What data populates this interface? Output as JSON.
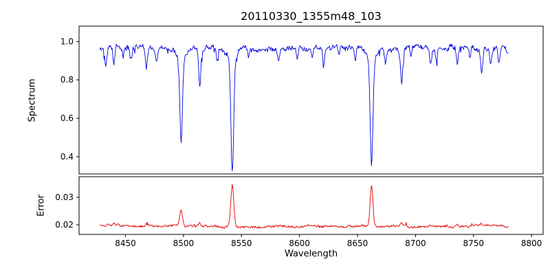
{
  "figure": {
    "title": "20110330_1355m48_103",
    "xlabel": "Wavelength",
    "ylabel_top": "Spectrum",
    "ylabel_bottom": "Error"
  },
  "xticks": [
    8450,
    8500,
    8550,
    8600,
    8650,
    8700,
    8750,
    8800
  ],
  "xtick_labels": [
    "8450",
    "8500",
    "8550",
    "8600",
    "8650",
    "8700",
    "8750",
    "8800"
  ],
  "chart_data": [
    {
      "type": "line",
      "name": "spectrum",
      "title": "20110330_1355m48_103",
      "xlabel": "Wavelength",
      "ylabel": "Spectrum",
      "legend": "none",
      "grid": false,
      "color": "#0000e0",
      "xlim": [
        8410,
        8810
      ],
      "ylim": [
        0.31,
        1.08
      ],
      "yticks": [
        0.4,
        0.6,
        0.8,
        1.0
      ],
      "ytick_labels": [
        "0.4",
        "0.6",
        "0.8",
        "1.0"
      ],
      "x_start": 8428,
      "x_end": 8780,
      "x_step": 0.5,
      "continuum": 0.965,
      "noise_amp": 0.011,
      "absorption_lines": [
        [
          8424,
          0.09,
          0.8,
          0
        ],
        [
          8433,
          0.1,
          0.9,
          0
        ],
        [
          8440,
          0.09,
          0.8,
          0
        ],
        [
          8448,
          0.05,
          0.7,
          0
        ],
        [
          8455,
          0.06,
          0.7,
          0
        ],
        [
          8468,
          0.11,
          0.9,
          0
        ],
        [
          8477,
          0.07,
          0.8,
          0
        ],
        [
          8498.0,
          0.43,
          1.1,
          0.055
        ],
        [
          8514,
          0.2,
          0.9,
          0
        ],
        [
          8529,
          0.07,
          0.8,
          0
        ],
        [
          8542.1,
          0.58,
          1.2,
          0.06
        ],
        [
          8556,
          0.05,
          0.7,
          0
        ],
        [
          8582,
          0.07,
          0.8,
          0
        ],
        [
          8598,
          0.06,
          0.8,
          0
        ],
        [
          8611,
          0.05,
          0.7,
          0
        ],
        [
          8621,
          0.09,
          0.8,
          0
        ],
        [
          8634,
          0.05,
          0.7,
          0
        ],
        [
          8648,
          0.07,
          0.8,
          0
        ],
        [
          8662.1,
          0.55,
          1.2,
          0.055
        ],
        [
          8674,
          0.07,
          0.8,
          0
        ],
        [
          8688,
          0.18,
          0.9,
          0
        ],
        [
          8696,
          0.05,
          0.7,
          0
        ],
        [
          8713,
          0.08,
          0.8,
          0
        ],
        [
          8718,
          0.06,
          0.7,
          0
        ],
        [
          8736,
          0.09,
          0.8,
          0
        ],
        [
          8747,
          0.06,
          0.7,
          0
        ],
        [
          8757,
          0.12,
          0.9,
          0
        ],
        [
          8765,
          0.07,
          0.8,
          0
        ],
        [
          8772,
          0.08,
          0.8,
          0
        ],
        [
          8780,
          0.04,
          0.7,
          0
        ]
      ]
    },
    {
      "type": "line",
      "name": "error",
      "ylabel": "Error",
      "legend": "none",
      "grid": false,
      "color": "#e00000",
      "xlim": [
        8410,
        8810
      ],
      "ylim": [
        0.0165,
        0.0375
      ],
      "yticks": [
        0.02,
        0.03
      ],
      "ytick_labels": [
        "0.02",
        "0.03"
      ],
      "x_start": 8428,
      "x_end": 8780,
      "x_step": 0.5,
      "baseline": 0.0195,
      "noise_amp": 0.00035,
      "peaks": [
        [
          8427,
          0.001,
          0.9
        ],
        [
          8435,
          0.0008,
          0.8
        ],
        [
          8440,
          0.0007,
          0.8
        ],
        [
          8468,
          0.0008,
          0.8
        ],
        [
          8498.0,
          0.0062,
          1.2
        ],
        [
          8514,
          0.0013,
          0.9
        ],
        [
          8542.1,
          0.0152,
          1.3
        ],
        [
          8662.1,
          0.0148,
          1.2
        ],
        [
          8688,
          0.0014,
          0.9
        ],
        [
          8736,
          0.0007,
          0.8
        ],
        [
          8757,
          0.0009,
          0.8
        ]
      ]
    }
  ]
}
